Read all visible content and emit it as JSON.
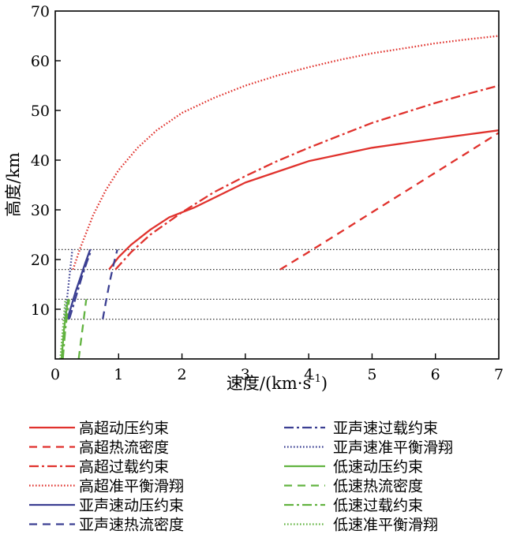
{
  "chart_data": {
    "type": "line",
    "xlabel": "速度/(km·s",
    "xlabel_sup": "-1",
    "xlabel_end": ")",
    "ylabel": "高度/km",
    "xlim": [
      0,
      7
    ],
    "ylim": [
      0,
      70
    ],
    "x_ticks": [
      0,
      1,
      2,
      3,
      4,
      5,
      6,
      7
    ],
    "y_ticks": [
      10,
      20,
      30,
      40,
      50,
      60,
      70
    ],
    "grid": false,
    "reference_lines_y": [
      8,
      12,
      18,
      22
    ],
    "legend_position": "bottom",
    "series": [
      {
        "name": "高超动压约束",
        "color": "#e0322d",
        "dash": "solid",
        "x": [
          0.85,
          1.0,
          1.2,
          1.5,
          1.8,
          2.2,
          3.0,
          4.0,
          5.0,
          6.0,
          7.0
        ],
        "y": [
          18,
          20.5,
          23,
          26,
          28.5,
          30.5,
          35.5,
          39.8,
          42.5,
          44.3,
          46
        ]
      },
      {
        "name": "高超热流密度",
        "color": "#e0322d",
        "dash": "dashed",
        "x": [
          3.55,
          4.0,
          4.5,
          5.0,
          5.5,
          6.0,
          6.5,
          7.0
        ],
        "y": [
          18,
          21.5,
          25.5,
          29.5,
          33.5,
          37.5,
          41.5,
          45.5
        ]
      },
      {
        "name": "高超过载约束",
        "color": "#e0322d",
        "dash": "dashdot",
        "x": [
          0.95,
          1.2,
          1.5,
          2.0,
          2.5,
          3.0,
          3.5,
          4.0,
          4.5,
          5.0,
          5.5,
          6.0,
          6.5,
          7.0
        ],
        "y": [
          18,
          21.5,
          25,
          29.5,
          33.5,
          36.8,
          39.8,
          42.5,
          45,
          47.5,
          49.5,
          51.5,
          53.3,
          55
        ]
      },
      {
        "name": "高超准平衡滑翔",
        "color": "#e0322d",
        "dash": "dotted",
        "x": [
          0.28,
          0.4,
          0.6,
          0.8,
          1.0,
          1.3,
          1.6,
          2.0,
          2.5,
          3.0,
          3.5,
          4.0,
          4.5,
          5.0,
          5.5,
          6.0,
          6.5,
          7.0
        ],
        "y": [
          18,
          22.5,
          29,
          34,
          38,
          42.5,
          46,
          49.5,
          52.5,
          55,
          57,
          58.7,
          60.2,
          61.5,
          62.5,
          63.5,
          64.3,
          65
        ]
      },
      {
        "name": "亚声速动压约束",
        "color": "#3b3f92",
        "dash": "solid",
        "x": [
          0.19,
          0.25,
          0.32,
          0.4,
          0.48,
          0.55
        ],
        "y": [
          8,
          10.5,
          13.5,
          16.5,
          19.5,
          22
        ]
      },
      {
        "name": "亚声速热流密度",
        "color": "#3b3f92",
        "dash": "dashed",
        "x": [
          0.75,
          0.8,
          0.86,
          0.92,
          0.98
        ],
        "y": [
          8,
          11.5,
          15.5,
          19,
          22
        ]
      },
      {
        "name": "亚声速过载约束",
        "color": "#3b3f92",
        "dash": "dashdot",
        "x": [
          0.22,
          0.28,
          0.35,
          0.42,
          0.5,
          0.57
        ],
        "y": [
          8,
          10.5,
          13.5,
          16.5,
          19.5,
          22
        ]
      },
      {
        "name": "亚声速准平衡滑翔",
        "color": "#3b3f92",
        "dash": "dotted",
        "x": [
          0.15,
          0.18,
          0.21,
          0.24,
          0.27
        ],
        "y": [
          8,
          11.5,
          15,
          18.5,
          22
        ]
      },
      {
        "name": "低速动压约束",
        "color": "#62b340",
        "dash": "solid",
        "x": [
          0.1,
          0.12,
          0.14,
          0.17,
          0.2
        ],
        "y": [
          0,
          3,
          6,
          9,
          12
        ]
      },
      {
        "name": "低速热流密度",
        "color": "#62b340",
        "dash": "dashed",
        "x": [
          0.37,
          0.4,
          0.43,
          0.46,
          0.49
        ],
        "y": [
          0,
          3,
          6,
          9,
          12
        ]
      },
      {
        "name": "低速过载约束",
        "color": "#62b340",
        "dash": "dashdot",
        "x": [
          0.12,
          0.14,
          0.16,
          0.19,
          0.22
        ],
        "y": [
          0,
          3,
          6,
          9,
          12
        ]
      },
      {
        "name": "低速准平衡滑翔",
        "color": "#62b340",
        "dash": "dotted",
        "x": [
          0.08,
          0.1,
          0.12,
          0.14,
          0.16
        ],
        "y": [
          0,
          3,
          6,
          9,
          12
        ]
      }
    ]
  }
}
